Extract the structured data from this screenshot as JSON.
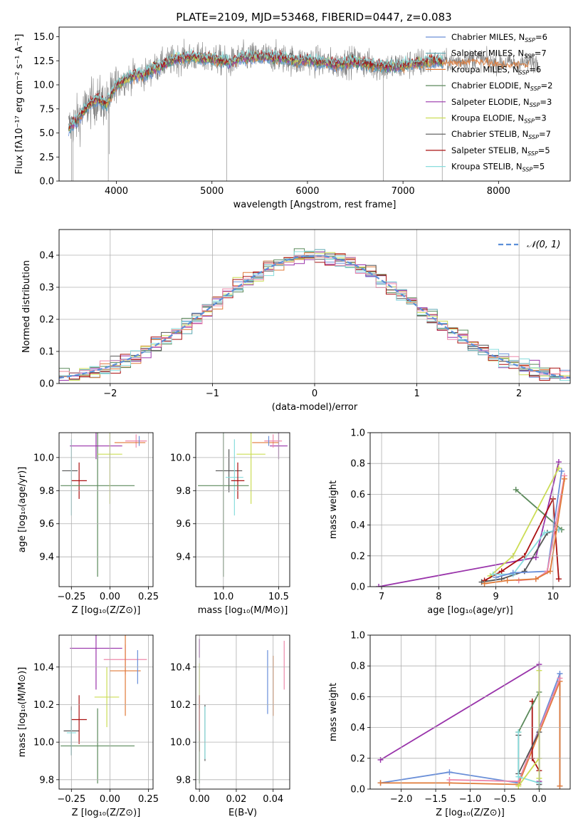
{
  "title": "PLATE=2109, MJD=53468, FIBERID=0447, z=0.083",
  "palette": {
    "Chabrier MILES": "#6a8fd8",
    "Salpeter MILES": "#5aa6b0",
    "Kroupa MILES": "#e07b39",
    "Chabrier ELODIE": "#5b8a5b",
    "Salpeter ELODIE": "#9933aa",
    "Kroupa ELODIE": "#ccdd55",
    "Chabrier STELIB": "#555555",
    "Salpeter STELIB": "#aa1111",
    "Kroupa STELIB": "#88dddd",
    "pink": "#ee88aa",
    "grid": "#b0b0b0"
  },
  "chart_data": [
    {
      "id": "spectrum",
      "type": "line",
      "xlabel": "wavelength [Angstrom, rest frame]",
      "ylabel": "Flux [fλ10⁻¹⁷ erg cm⁻² s⁻¹ A⁻¹]",
      "xlim": [
        3400,
        8750
      ],
      "ylim": [
        0,
        16
      ],
      "xticks": [
        4000,
        5000,
        6000,
        7000,
        8000
      ],
      "yticks": [
        "0.0",
        "2.5",
        "5.0",
        "7.5",
        "10.0",
        "12.5",
        "15.0"
      ],
      "grid": false,
      "legend_position": "top-right",
      "legend": [
        {
          "label": "Chabrier MILES, N",
          "sub": "SSP",
          "tail": "=6",
          "color": "#6a8fd8"
        },
        {
          "label": "Salpeter MILES, N",
          "sub": "SSP",
          "tail": "=7",
          "color": "#5aa6b0"
        },
        {
          "label": "Kroupa MILES, N",
          "sub": "SSP",
          "tail": "=6",
          "color": "#e07b39"
        },
        {
          "label": "Chabrier ELODIE, N",
          "sub": "SSP",
          "tail": "=2",
          "color": "#5b8a5b"
        },
        {
          "label": "Salpeter ELODIE, N",
          "sub": "SSP",
          "tail": "=3",
          "color": "#9933aa"
        },
        {
          "label": "Kroupa ELODIE, N",
          "sub": "SSP",
          "tail": "=3",
          "color": "#ccdd55"
        },
        {
          "label": "Chabrier STELIB, N",
          "sub": "SSP",
          "tail": "=7",
          "color": "#555555"
        },
        {
          "label": "Salpeter STELIB, N",
          "sub": "SSP",
          "tail": "=5",
          "color": "#aa1111"
        },
        {
          "label": "Kroupa STELIB, N",
          "sub": "SSP",
          "tail": "=5",
          "color": "#88dddd"
        }
      ],
      "continuum": [
        [
          3500,
          5.5
        ],
        [
          3600,
          6.5
        ],
        [
          3700,
          7.8
        ],
        [
          3800,
          8.5
        ],
        [
          3900,
          8.0
        ],
        [
          4000,
          10.0
        ],
        [
          4100,
          10.6
        ],
        [
          4200,
          11.0
        ],
        [
          4300,
          11.1
        ],
        [
          4400,
          11.7
        ],
        [
          4500,
          12.2
        ],
        [
          4600,
          12.6
        ],
        [
          4700,
          12.8
        ],
        [
          4800,
          12.9
        ],
        [
          4900,
          12.7
        ],
        [
          5000,
          12.7
        ],
        [
          5100,
          12.5
        ],
        [
          5200,
          12.3
        ],
        [
          5300,
          12.8
        ],
        [
          5400,
          12.9
        ],
        [
          5500,
          12.9
        ],
        [
          5600,
          12.9
        ],
        [
          5700,
          12.8
        ],
        [
          5800,
          12.7
        ],
        [
          5900,
          12.4
        ],
        [
          6000,
          12.6
        ],
        [
          6100,
          12.4
        ],
        [
          6200,
          12.3
        ],
        [
          6300,
          12.1
        ],
        [
          6400,
          12.3
        ],
        [
          6500,
          12.5
        ],
        [
          6600,
          12.2
        ],
        [
          6700,
          12.0
        ],
        [
          6800,
          11.9
        ],
        [
          6900,
          11.9
        ],
        [
          7000,
          12.0
        ],
        [
          7100,
          12.2
        ],
        [
          7200,
          12.3
        ],
        [
          7300,
          12.5
        ],
        [
          7400,
          12.5
        ],
        [
          7500,
          12.4
        ],
        [
          7600,
          12.5
        ],
        [
          7700,
          12.6
        ],
        [
          7800,
          12.7
        ],
        [
          7900,
          12.4
        ],
        [
          8000,
          12.2
        ],
        [
          8100,
          12.3
        ],
        [
          8200,
          12.2
        ],
        [
          8300,
          12.3
        ],
        [
          8400,
          12.4
        ]
      ],
      "model_range": [
        3500,
        7420
      ],
      "dips": [
        [
          3530,
          0
        ],
        [
          3545,
          0
        ],
        [
          3915,
          0
        ],
        [
          3925,
          2.8
        ],
        [
          5155,
          0
        ],
        [
          6795,
          0
        ],
        [
          7410,
          0
        ]
      ],
      "data_noise": 1.1
    },
    {
      "id": "residuals",
      "type": "bar",
      "xlabel": "(data-model)/error",
      "ylabel": "Normed distribution",
      "xlim": [
        -2.5,
        2.5
      ],
      "ylim": [
        0,
        0.48
      ],
      "xticks": [
        "−2",
        "−1",
        "0",
        "1",
        "2"
      ],
      "xtick_values": [
        -2,
        -1,
        0,
        1,
        2
      ],
      "yticks": [
        "0.0",
        "0.1",
        "0.2",
        "0.3",
        "0.4"
      ],
      "ytick_values": [
        0,
        0.1,
        0.2,
        0.3,
        0.4
      ],
      "grid": true,
      "legend_position": "top-right",
      "legend_label": "𝒩(0, 1)",
      "bin_width": 0.1,
      "bin_start": -2.5
    },
    {
      "id": "age-vs-Z",
      "type": "scatter",
      "xlabel": "Z [log₁₀(Z/Z⊙)]",
      "ylabel": "age  [log₁₀(age/yr)]",
      "xlim": [
        -0.33,
        0.28
      ],
      "ylim": [
        9.22,
        10.15
      ],
      "xticks": [
        "−0.25",
        "0.00",
        "0.25"
      ],
      "xtick_values": [
        -0.25,
        0,
        0.25
      ],
      "yticks": [
        "9.4",
        "9.6",
        "9.8",
        "10.0"
      ],
      "ytick_values": [
        9.4,
        9.6,
        9.8,
        10.0
      ],
      "grid": true,
      "points": [
        {
          "x": -0.26,
          "y": 9.92,
          "ex": 0.05,
          "ey": 0.0,
          "color": "#555555"
        },
        {
          "x": -0.25,
          "y": 9.88,
          "ex": 0.0,
          "ey": 0.23,
          "color": "#88dddd"
        },
        {
          "x": -0.2,
          "y": 9.86,
          "ex": 0.05,
          "ey": 0.11,
          "color": "#aa1111"
        },
        {
          "x": -0.08,
          "y": 9.83,
          "ex": 0.24,
          "ey": 0.55,
          "color": "#5b8a5b"
        },
        {
          "x": -0.09,
          "y": 10.07,
          "ex": 0.17,
          "ey": 0.08,
          "color": "#9933aa"
        },
        {
          "x": 0.0,
          "y": 10.02,
          "ex": 0.08,
          "ey": 0.3,
          "color": "#ccdd55"
        },
        {
          "x": 0.17,
          "y": 10.1,
          "ex": 0.07,
          "ey": 0.04,
          "color": "#ee88aa"
        },
        {
          "x": 0.13,
          "y": 10.09,
          "ex": 0.1,
          "ey": 0.0,
          "color": "#e07b39"
        },
        {
          "x": 0.19,
          "y": 10.1,
          "ex": 0.0,
          "ey": 0.03,
          "color": "#6a8fd8"
        }
      ]
    },
    {
      "id": "age-vs-mass",
      "type": "scatter",
      "xlabel": "mass [log₁₀(M/M⊙)]",
      "ylabel": "",
      "xlim": [
        9.75,
        10.6
      ],
      "ylim": [
        9.22,
        10.15
      ],
      "xticks": [
        "10.0",
        "10.5"
      ],
      "xtick_values": [
        10.0,
        10.5
      ],
      "yticks": [
        "9.4",
        "9.6",
        "9.8",
        "10.0"
      ],
      "ytick_values": [
        9.4,
        9.6,
        9.8,
        10.0
      ],
      "grid": true,
      "points": [
        {
          "x": 10.05,
          "y": 9.92,
          "ex": 0.12,
          "ey": 0.13,
          "color": "#555555"
        },
        {
          "x": 10.1,
          "y": 9.88,
          "ex": 0.08,
          "ey": 0.23,
          "color": "#88dddd"
        },
        {
          "x": 10.13,
          "y": 9.86,
          "ex": 0.06,
          "ey": 0.11,
          "color": "#aa1111"
        },
        {
          "x": 10.0,
          "y": 9.83,
          "ex": 0.23,
          "ey": 0.55,
          "color": "#5b8a5b"
        },
        {
          "x": 10.5,
          "y": 10.07,
          "ex": 0.08,
          "ey": 0.08,
          "color": "#9933aa"
        },
        {
          "x": 10.25,
          "y": 10.02,
          "ex": 0.13,
          "ey": 0.3,
          "color": "#ccdd55"
        },
        {
          "x": 10.45,
          "y": 10.1,
          "ex": 0.08,
          "ey": 0.04,
          "color": "#ee88aa"
        },
        {
          "x": 10.38,
          "y": 10.09,
          "ex": 0.12,
          "ey": 0.0,
          "color": "#e07b39"
        },
        {
          "x": 10.41,
          "y": 10.1,
          "ex": 0.0,
          "ey": 0.03,
          "color": "#6a8fd8"
        }
      ]
    },
    {
      "id": "massweight-vs-age",
      "type": "line",
      "xlabel": "age  [log₁₀(age/yr)]",
      "ylabel": "mass weight",
      "xlim": [
        6.8,
        10.3
      ],
      "ylim": [
        0,
        1.0
      ],
      "xticks": [
        "7",
        "8",
        "9",
        "10"
      ],
      "xtick_values": [
        7,
        8,
        9,
        10
      ],
      "yticks": [
        "0.0",
        "0.2",
        "0.4",
        "0.6",
        "0.8",
        "1.0"
      ],
      "ytick_values": [
        0,
        0.2,
        0.4,
        0.6,
        0.8,
        1.0
      ],
      "grid": true,
      "series": [
        {
          "color": "#9933aa",
          "x": [
            6.95,
            9.7,
            10.1
          ],
          "y": [
            0.0,
            0.19,
            0.81
          ]
        },
        {
          "color": "#5b8a5b",
          "x": [
            9.35,
            10.15
          ],
          "y": [
            0.63,
            0.37
          ]
        },
        {
          "color": "#ccdd55",
          "x": [
            8.9,
            9.3,
            10.1
          ],
          "y": [
            0.07,
            0.2,
            0.77
          ]
        },
        {
          "color": "#aa1111",
          "x": [
            8.8,
            9.1,
            9.5,
            10.0,
            10.1
          ],
          "y": [
            0.04,
            0.1,
            0.2,
            0.57,
            0.05
          ]
        },
        {
          "color": "#555555",
          "x": [
            8.75,
            9.1,
            9.5,
            9.9,
            10.1
          ],
          "y": [
            0.03,
            0.05,
            0.1,
            0.35,
            0.37
          ]
        },
        {
          "color": "#88dddd",
          "x": [
            8.95,
            9.3,
            9.85,
            10.1
          ],
          "y": [
            0.08,
            0.08,
            0.35,
            0.37
          ]
        },
        {
          "color": "#6a8fd8",
          "x": [
            9.0,
            9.3,
            9.9,
            10.15
          ],
          "y": [
            0.06,
            0.09,
            0.1,
            0.75
          ]
        },
        {
          "color": "#ee88aa",
          "x": [
            9.4,
            9.7,
            9.9,
            10.2
          ],
          "y": [
            0.04,
            0.05,
            0.1,
            0.72
          ]
        },
        {
          "color": "#e07b39",
          "x": [
            8.8,
            9.2,
            9.7,
            9.95,
            10.2
          ],
          "y": [
            0.02,
            0.04,
            0.05,
            0.1,
            0.7
          ]
        }
      ]
    },
    {
      "id": "mass-vs-Z",
      "type": "scatter",
      "xlabel": "Z [log₁₀(Z/Z⊙)]",
      "ylabel": "mass [log₁₀(M/M⊙)]",
      "xlim": [
        -0.33,
        0.28
      ],
      "ylim": [
        9.75,
        10.57
      ],
      "xticks": [
        "−0.25",
        "0.00",
        "0.25"
      ],
      "xtick_values": [
        -0.25,
        0,
        0.25
      ],
      "yticks": [
        "9.8",
        "10.0",
        "10.2",
        "10.4"
      ],
      "ytick_values": [
        9.8,
        10.0,
        10.2,
        10.4
      ],
      "grid": true,
      "points": [
        {
          "x": -0.25,
          "y": 10.06,
          "ex": 0.05,
          "ey": 0.13,
          "color": "#555555"
        },
        {
          "x": -0.25,
          "y": 10.05,
          "ex": 0.03,
          "ey": 0.12,
          "color": "#88dddd"
        },
        {
          "x": -0.2,
          "y": 10.12,
          "ex": 0.05,
          "ey": 0.13,
          "color": "#aa1111"
        },
        {
          "x": -0.08,
          "y": 9.98,
          "ex": 0.24,
          "ey": 0.2,
          "color": "#5b8a5b"
        },
        {
          "x": -0.09,
          "y": 10.5,
          "ex": 0.17,
          "ey": 0.22,
          "color": "#9933aa"
        },
        {
          "x": -0.02,
          "y": 10.24,
          "ex": 0.08,
          "ey": 0.16,
          "color": "#ccdd55"
        },
        {
          "x": 0.1,
          "y": 10.44,
          "ex": 0.14,
          "ey": 0.08,
          "color": "#ee88aa"
        },
        {
          "x": 0.1,
          "y": 10.38,
          "ex": 0.1,
          "ey": 0.24,
          "color": "#e07b39"
        },
        {
          "x": 0.18,
          "y": 10.4,
          "ex": 0.0,
          "ey": 0.09,
          "color": "#6a8fd8"
        }
      ]
    },
    {
      "id": "mass-vs-EBV",
      "type": "scatter",
      "xlabel": "E(B-V)",
      "ylabel": "",
      "xlim": [
        -0.002,
        0.049
      ],
      "ylim": [
        9.75,
        10.57
      ],
      "xticks": [
        "0.00",
        "0.02",
        "0.04"
      ],
      "xtick_values": [
        0,
        0.02,
        0.04
      ],
      "yticks": [
        "9.8",
        "10.0",
        "10.2",
        "10.4"
      ],
      "ytick_values": [
        9.8,
        10.0,
        10.2,
        10.4
      ],
      "grid": true,
      "points": [
        {
          "x": 0.0,
          "y": 10.5,
          "ex": 0,
          "ey": 0.05,
          "color": "#9933aa"
        },
        {
          "x": 0.0,
          "y": 10.3,
          "ex": 0,
          "ey": 0.12,
          "color": "#ccdd55"
        },
        {
          "x": 0.0,
          "y": 10.1,
          "ex": 0,
          "ey": 0.15,
          "color": "#aa1111"
        },
        {
          "x": 0.0,
          "y": 9.92,
          "ex": 0,
          "ey": 0.14,
          "color": "#5b8a5b"
        },
        {
          "x": 0.003,
          "y": 10.05,
          "ex": 0,
          "ey": 0.15,
          "color": "#555555"
        },
        {
          "x": 0.003,
          "y": 10.05,
          "ex": 0,
          "ey": 0.14,
          "color": "#88dddd"
        },
        {
          "x": 0.037,
          "y": 10.32,
          "ex": 0,
          "ey": 0.17,
          "color": "#6a8fd8"
        },
        {
          "x": 0.04,
          "y": 10.3,
          "ex": 0,
          "ey": 0.16,
          "color": "#e07b39"
        },
        {
          "x": 0.046,
          "y": 10.41,
          "ex": 0,
          "ey": 0.13,
          "color": "#ee88aa"
        }
      ]
    },
    {
      "id": "massweight-vs-Z",
      "type": "line",
      "xlabel": "Z [log₁₀(Z/Z⊙)]",
      "ylabel": "mass weight",
      "xlim": [
        -2.45,
        0.45
      ],
      "ylim": [
        0,
        1.0
      ],
      "xticks": [
        "−2.0",
        "−1.5",
        "−1.0",
        "−0.5",
        "0.0"
      ],
      "xtick_values": [
        -2.0,
        -1.5,
        -1.0,
        -0.5,
        0.0
      ],
      "yticks": [
        "0.0",
        "0.2",
        "0.4",
        "0.6",
        "0.8",
        "1.0"
      ],
      "ytick_values": [
        0,
        0.2,
        0.4,
        0.6,
        0.8,
        1.0
      ],
      "grid": true,
      "series": [
        {
          "color": "#9933aa",
          "x": [
            -2.3,
            0.0,
            0.0
          ],
          "y": [
            0.19,
            0.81,
            0.05
          ]
        },
        {
          "color": "#6a8fd8",
          "x": [
            -2.3,
            -1.3,
            -0.3,
            0.3,
            0.3
          ],
          "y": [
            0.04,
            0.11,
            0.04,
            0.75,
            0.02
          ]
        },
        {
          "color": "#e07b39",
          "x": [
            -2.3,
            -1.3,
            -0.3,
            0.3,
            0.3
          ],
          "y": [
            0.04,
            0.04,
            0.03,
            0.7,
            0.02
          ]
        },
        {
          "color": "#ee88aa",
          "x": [
            -1.3,
            -0.3,
            0.3
          ],
          "y": [
            0.06,
            0.05,
            0.72
          ]
        },
        {
          "color": "#aa1111",
          "x": [
            -0.1,
            -0.1,
            0.0,
            0.0
          ],
          "y": [
            0.57,
            0.2,
            0.12,
            0.04
          ]
        },
        {
          "color": "#5b8a5b",
          "x": [
            -0.3,
            0.0,
            0.0
          ],
          "y": [
            0.37,
            0.63,
            0.0
          ]
        },
        {
          "color": "#555555",
          "x": [
            -0.3,
            -0.3,
            0.0,
            0.0
          ],
          "y": [
            0.35,
            0.1,
            0.37,
            0.03
          ]
        },
        {
          "color": "#88dddd",
          "x": [
            -0.3,
            -0.3,
            0.0
          ],
          "y": [
            0.37,
            0.08,
            0.04
          ]
        },
        {
          "color": "#ccdd55",
          "x": [
            -0.3,
            0.0,
            0.0,
            0.0
          ],
          "y": [
            0.02,
            0.2,
            0.77,
            0.07
          ]
        }
      ]
    }
  ]
}
